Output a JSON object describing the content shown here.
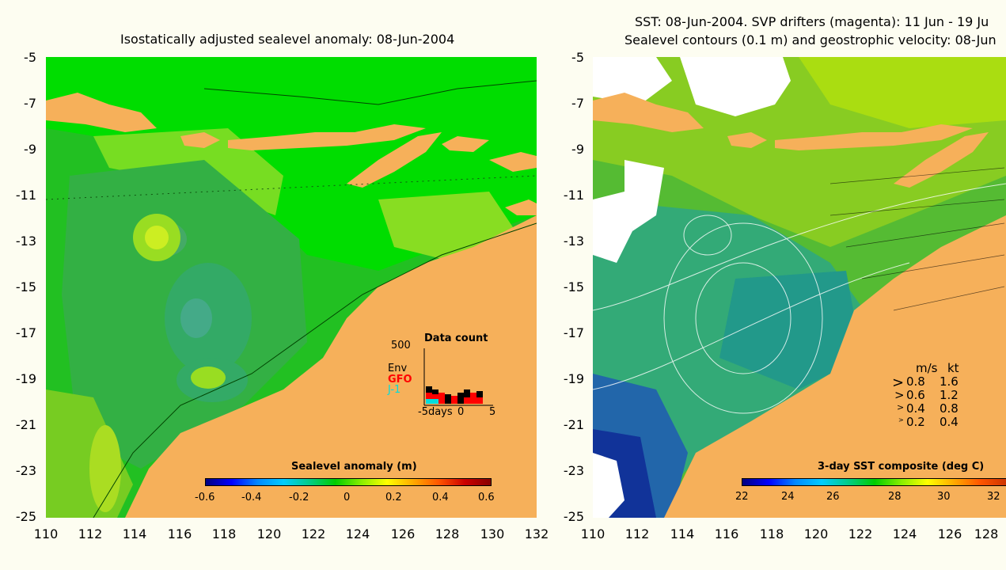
{
  "left_panel": {
    "title": "Isostatically adjusted sealevel anomaly: 08-Jun-2004",
    "y_ticks": [
      "-5",
      "-7",
      "-9",
      "-11",
      "-13",
      "-15",
      "-17",
      "-19",
      "-21",
      "-23",
      "-25"
    ],
    "x_ticks": [
      "110",
      "112",
      "114",
      "116",
      "118",
      "120",
      "122",
      "124",
      "126",
      "128",
      "130",
      "132"
    ],
    "colorbar": {
      "title": "Sealevel anomaly (m)",
      "ticks": [
        "-0.6",
        "-0.4",
        "-0.2",
        "0",
        "0.2",
        "0.4",
        "0.6"
      ],
      "range": [
        -0.6,
        0.6
      ]
    },
    "data_count": {
      "title": "Data count",
      "max_label": "500",
      "legend": [
        {
          "label": "Env",
          "color": "#000000"
        },
        {
          "label": "GFO",
          "color": "#ff0000"
        },
        {
          "label": "J-1",
          "color": "#00dddd"
        }
      ],
      "x_axis": [
        "-5days",
        "0",
        "5"
      ]
    }
  },
  "right_panel": {
    "title_line1": "SST: 08-Jun-2004. SVP drifters (magenta): 11 Jun - 19 Ju",
    "title_line2": "Sealevel contours (0.1 m) and geostrophic velocity: 08-Jun",
    "y_ticks": [
      "-5",
      "-7",
      "-9",
      "-11",
      "-13",
      "-15",
      "-17",
      "-19",
      "-21",
      "-23",
      "-25"
    ],
    "x_ticks": [
      "110",
      "112",
      "114",
      "116",
      "118",
      "120",
      "122",
      "124",
      "126",
      "128"
    ],
    "colorbar": {
      "title": "3-day SST composite (deg C)",
      "ticks": [
        "22",
        "24",
        "26",
        "28",
        "30",
        "32"
      ],
      "range": [
        22,
        33
      ]
    },
    "velocity_legend": {
      "header": [
        "m/s",
        "kt"
      ],
      "rows": [
        [
          "0.8",
          "1.6"
        ],
        [
          "0.6",
          "1.2"
        ],
        [
          "0.4",
          "0.8"
        ],
        [
          "0.2",
          "0.4"
        ]
      ]
    }
  },
  "colors": {
    "land": "#f6b05a",
    "background": "#fdfdf1"
  }
}
